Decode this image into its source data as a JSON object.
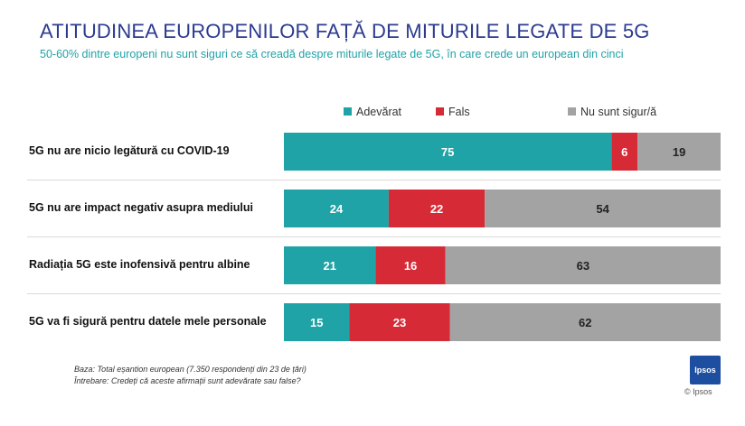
{
  "header": {
    "title": "ATITUDINEA EUROPENILOR FAȚĂ DE MITURILE LEGATE DE 5G",
    "subtitle": "50-60% dintre europeni nu sunt siguri ce să creadă despre miturile legate de 5G, în care crede un european din cinci"
  },
  "chart_data": {
    "type": "bar",
    "orientation": "horizontal",
    "stacked": true,
    "title": "",
    "xlabel": "",
    "ylabel": "",
    "xlim": [
      0,
      100
    ],
    "legend_position": "top",
    "categories": [
      "5G nu are nicio legătură cu COVID-19",
      "5G nu are impact negativ asupra mediului",
      "Radiația 5G este inofensivă pentru albine",
      "5G va fi sigură pentru datele mele personale"
    ],
    "series": [
      {
        "name": "Adevărat",
        "color": "#1fa3a7",
        "values": [
          75,
          24,
          21,
          15
        ]
      },
      {
        "name": "Fals",
        "color": "#d62a36",
        "values": [
          6,
          22,
          16,
          23
        ]
      },
      {
        "name": "Nu sunt sigur/ă",
        "color": "#a3a3a3",
        "values": [
          19,
          54,
          63,
          62
        ]
      }
    ]
  },
  "footnote": {
    "line1": "Baza: Total eșantion european (7.350 respondenți din 23 de țări)",
    "line2": "Întrebare: Credeți că aceste afirmații sunt adevărate sau false?"
  },
  "logo": {
    "text": "Ipsos",
    "caption": "© Ipsos"
  }
}
